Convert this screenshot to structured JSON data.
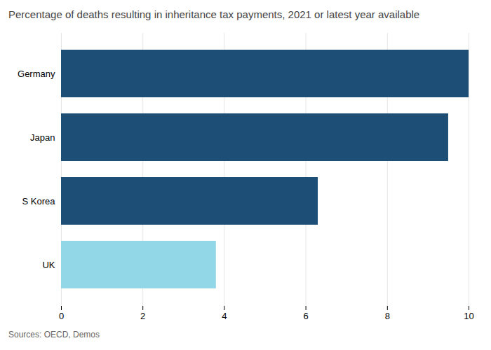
{
  "chart_data": {
    "type": "bar",
    "orientation": "horizontal",
    "title": "Percentage of deaths resulting in inheritance tax payments, 2021 or latest year available",
    "source": "Sources: OECD, Demos",
    "categories": [
      "UK",
      "S Korea",
      "Japan",
      "Germany"
    ],
    "values": [
      3.8,
      6.3,
      9.5,
      10.0
    ],
    "colors": [
      "#92d7e8",
      "#1d4f76",
      "#1d4f76",
      "#1d4f76"
    ],
    "xlim": [
      0,
      10
    ],
    "xticks": [
      0,
      2,
      4,
      6,
      8,
      10
    ],
    "grid": true
  }
}
